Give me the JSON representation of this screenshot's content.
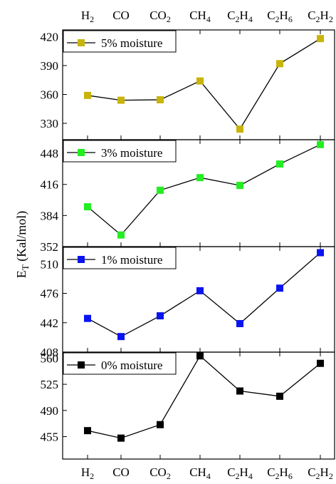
{
  "chart_data": {
    "type": "line",
    "ylabel": "E_T (Kal/mol)",
    "categories": [
      {
        "main": "H",
        "sub": "2",
        "rest": ""
      },
      {
        "main": "CO",
        "sub": "",
        "rest": ""
      },
      {
        "main": "CO",
        "sub": "2",
        "rest": ""
      },
      {
        "main": "CH",
        "sub": "4",
        "rest": ""
      },
      {
        "main": "C",
        "sub": "2",
        "rest": "H",
        "sub2": "4"
      },
      {
        "main": "C",
        "sub": "2",
        "rest": "H",
        "sub2": "6"
      },
      {
        "main": "C",
        "sub": "2",
        "rest": "H",
        "sub2": "2"
      }
    ],
    "panels": [
      {
        "name": "5% moisture",
        "color": "#c8b40a",
        "ylim": [
          313,
          427
        ],
        "yticks": [
          330,
          360,
          390,
          420
        ],
        "values": [
          359,
          354,
          354.5,
          374,
          324,
          392,
          418
        ]
      },
      {
        "name": "3% moisture",
        "color": "#22ee22",
        "ylim": [
          352,
          462
        ],
        "yticks": [
          352,
          384,
          416,
          448
        ],
        "values": [
          393,
          364,
          410,
          423,
          415,
          437,
          457
        ]
      },
      {
        "name": "1% moisture",
        "color": "#0a14f0",
        "ylim": [
          408,
          530
        ],
        "yticks": [
          408,
          442,
          476,
          510
        ],
        "values": [
          447,
          426,
          450,
          479,
          441,
          482,
          523
        ]
      },
      {
        "name": "0% moisture",
        "color": "#000000",
        "ylim": [
          425,
          568
        ],
        "yticks": [
          455,
          490,
          525,
          560
        ],
        "values": [
          463,
          453,
          471,
          563,
          516,
          509,
          553
        ]
      }
    ]
  }
}
